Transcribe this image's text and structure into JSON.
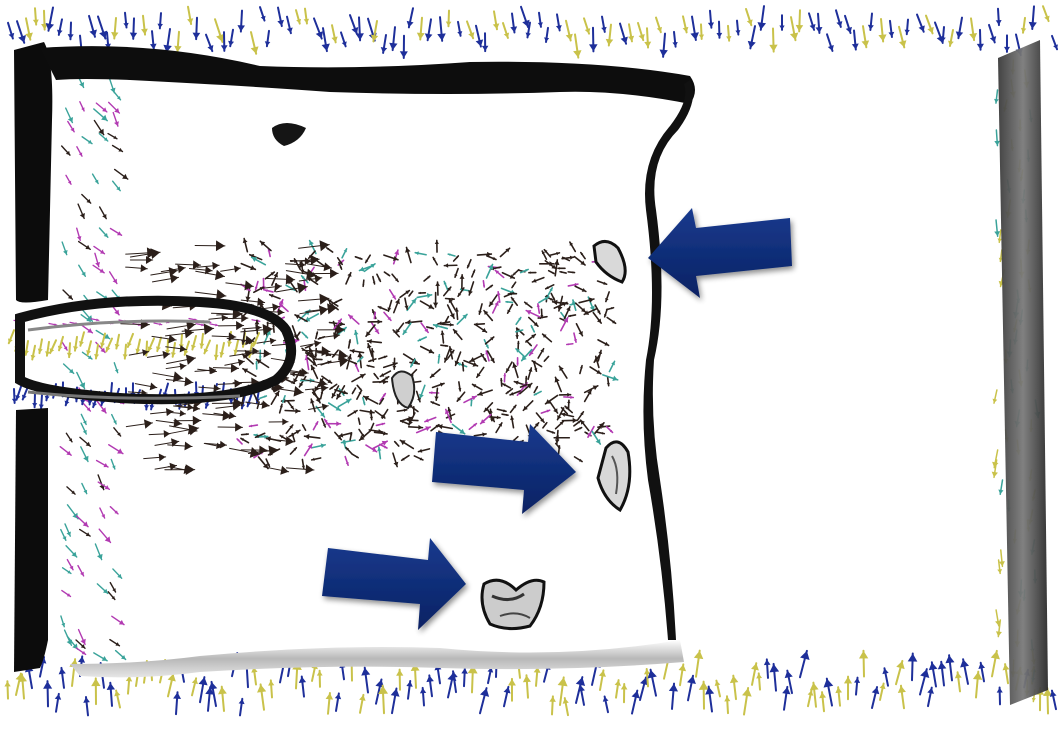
{
  "image": {
    "kind": "3d-flow-visualization",
    "colors": {
      "background": "#ffffff",
      "vector_blue": "#1e2f9a",
      "vector_yellow": "#c9c24a",
      "vector_teal": "#3aa39a",
      "vector_magenta": "#b23ab2",
      "vector_dark": "#2b1f1a",
      "surface_dark": "#0c0c0c",
      "surface_mid": "#7a7a7a",
      "surface_light": "#d6d6d6",
      "arrow_fill": "#0e2b73"
    },
    "icons": [
      "arrow-right-icon",
      "arrow-left-icon"
    ],
    "annotation_arrows": 3,
    "highlighted_blobs": 4
  }
}
